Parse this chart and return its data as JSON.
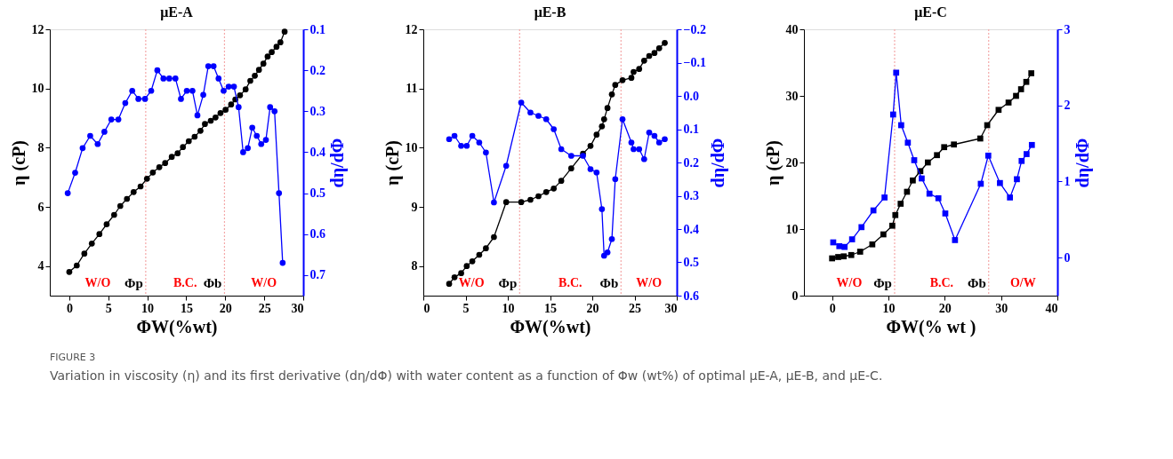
{
  "chart_data": [
    {
      "type": "line",
      "title": "μE-A",
      "xlabel": "ΦW(%wt)",
      "ylabel": "η (cP)",
      "y2label": "dη/dΦ",
      "marker": "circle",
      "xlim": [
        -2.5,
        30
      ],
      "xticks": [
        0,
        5,
        10,
        15,
        20,
        25,
        30
      ],
      "ylim": [
        3,
        12
      ],
      "yticks": [
        4,
        6,
        8,
        10,
        12
      ],
      "y2lim": [
        0.75,
        0.1
      ],
      "y2ticks": [
        0.1,
        0.2,
        0.3,
        0.4,
        0.5,
        0.6,
        0.7
      ],
      "series": [
        {
          "color": "#000000",
          "x": [
            0,
            0.96,
            1.93,
            2.89,
            3.86,
            4.79,
            5.75,
            6.54,
            7.39,
            8.25,
            9.14,
            9.96,
            10.71,
            11.54,
            12.29,
            13.14,
            13.89,
            14.57,
            15.32,
            16.07,
            16.82,
            17.39,
            18.14,
            18.75,
            19.39,
            20.04,
            20.75,
            21.29,
            21.89,
            22.61,
            23.21,
            23.79,
            24.32,
            24.89,
            25.43,
            25.96,
            26.57,
            27.07,
            27.61
          ],
          "values": [
            3.8,
            4.02,
            4.42,
            4.76,
            5.08,
            5.41,
            5.73,
            6.03,
            6.27,
            6.5,
            6.69,
            6.95,
            7.16,
            7.34,
            7.48,
            7.69,
            7.81,
            8.02,
            8.22,
            8.37,
            8.57,
            8.8,
            8.91,
            9.02,
            9.17,
            9.28,
            9.46,
            9.63,
            9.77,
            9.97,
            10.26,
            10.43,
            10.63,
            10.84,
            11.08,
            11.23,
            11.41,
            11.56,
            11.92
          ]
        },
        {
          "color": "#0000ff",
          "axis": "y2",
          "x": [
            -0.2,
            0.75,
            1.71,
            2.68,
            3.64,
            4.5,
            5.39,
            6.29,
            7.18,
            8.07,
            8.86,
            9.71,
            10.5,
            11.29,
            12.07,
            12.82,
            13.61,
            14.32,
            15.07,
            15.79,
            16.43,
            17.18,
            17.82,
            18.5,
            19.14,
            19.79,
            20.43,
            21.11,
            21.71,
            22.29,
            22.89,
            23.46,
            24.04,
            24.61,
            25.21,
            25.75,
            26.32,
            26.89,
            27.36
          ],
          "values": [
            0.5,
            0.45,
            0.39,
            0.36,
            0.38,
            0.35,
            0.32,
            0.32,
            0.28,
            0.25,
            0.27,
            0.27,
            0.25,
            0.2,
            0.22,
            0.22,
            0.22,
            0.27,
            0.25,
            0.25,
            0.31,
            0.26,
            0.19,
            0.19,
            0.22,
            0.25,
            0.24,
            0.24,
            0.29,
            0.4,
            0.39,
            0.34,
            0.36,
            0.38,
            0.37,
            0.29,
            0.3,
            0.5,
            0.67
          ]
        }
      ],
      "ref_lines": [
        {
          "axis": "x",
          "value": 9.8,
          "label": "Φp",
          "color": "#f4a8a8",
          "line_style": "dotted"
        },
        {
          "axis": "x",
          "value": 19.9,
          "label": "Φb",
          "color": "#f4a8a8",
          "line_style": "dotted"
        }
      ],
      "annotations": [
        "W/O",
        "B.C.",
        "W/O",
        "FIGURE 3",
        "Variation in viscosity (η) and its first derivative (dη/dΦ) with water content as a function of Φw (wt%) of optimal μE-A, μE-B, and μE-C."
      ]
    },
    {
      "type": "line",
      "title": "μE-B",
      "xlabel": "ΦW(%wt)",
      "ylabel": "η (cP)",
      "y2label": "dη/dΦ",
      "marker": "circle",
      "xlim": [
        0,
        30
      ],
      "xticks": [
        0,
        5,
        10,
        15,
        20,
        25,
        30
      ],
      "ylim": [
        7.5,
        12
      ],
      "yticks": [
        8,
        9,
        10,
        11,
        12
      ],
      "y2lim": [
        0.6,
        -0.2
      ],
      "y2ticks": [
        -0.2,
        -0.1,
        {
          "value": 0,
          "label": "0.0"
        },
        0.1,
        0.2,
        0.3,
        0.4,
        0.5,
        0.6
      ],
      "series": [
        {
          "color": "#000000",
          "x": [
            3.06,
            3.69,
            4.48,
            5.14,
            5.8,
            6.62,
            7.41,
            8.36,
            9.81,
            11.59,
            12.68,
            13.63,
            14.55,
            15.44,
            16.33,
            17.51,
            18.9,
            19.79,
            20.51,
            21.14,
            21.4,
            21.8,
            22.32,
            22.72,
            23.58,
            24.63,
            24.89,
            25.55,
            26.14,
            26.74,
            27.36,
            27.92,
            28.58
          ],
          "values": [
            7.7,
            7.81,
            7.88,
            8.0,
            8.08,
            8.19,
            8.3,
            8.49,
            9.08,
            9.08,
            9.12,
            9.18,
            9.25,
            9.31,
            9.44,
            9.65,
            9.9,
            10.03,
            10.22,
            10.36,
            10.48,
            10.67,
            10.9,
            11.06,
            11.14,
            11.18,
            11.28,
            11.33,
            11.47,
            11.55,
            11.6,
            11.68,
            11.77
          ]
        },
        {
          "color": "#0000ff",
          "axis": "y2",
          "x": [
            3.06,
            3.69,
            4.48,
            5.14,
            5.8,
            6.62,
            7.41,
            8.36,
            9.81,
            11.59,
            12.68,
            13.63,
            14.55,
            15.44,
            16.33,
            17.51,
            18.9,
            19.79,
            20.51,
            21.14,
            21.4,
            21.8,
            22.32,
            22.72,
            23.58,
            24.63,
            24.89,
            25.55,
            26.14,
            26.74,
            27.36,
            27.92,
            28.58
          ],
          "values": [
            0.13,
            0.12,
            0.15,
            0.15,
            0.12,
            0.14,
            0.17,
            0.32,
            0.21,
            0.02,
            0.05,
            0.06,
            0.07,
            0.1,
            0.16,
            0.18,
            0.18,
            0.22,
            0.23,
            0.34,
            0.48,
            0.47,
            0.43,
            0.25,
            0.07,
            0.14,
            0.16,
            0.16,
            0.19,
            0.11,
            0.12,
            0.14,
            0.13
          ]
        }
      ],
      "ref_lines": [
        {
          "axis": "x",
          "value": 11.4,
          "label": "Φp",
          "color": "#f4a8a8",
          "line_style": "dotted"
        },
        {
          "axis": "x",
          "value": 23.4,
          "label": "Φb",
          "color": "#f4a8a8",
          "line_style": "dotted"
        }
      ],
      "annotations": [
        "W/O",
        "B.C.",
        "W/O"
      ]
    },
    {
      "type": "line",
      "title": "μE-C",
      "xlabel": "ΦW(% wt )",
      "ylabel": "η (cP)",
      "y2label": "dη/dΦ",
      "marker": "square",
      "xlim": [
        -5,
        40
      ],
      "xticks": [
        0,
        10,
        20,
        30,
        40
      ],
      "ylim": [
        0,
        40
      ],
      "yticks": [
        0,
        10,
        20,
        30,
        40
      ],
      "y2lim": [
        -0.5,
        3
      ],
      "y2ticks": [
        0,
        1,
        2,
        3
      ],
      "series": [
        {
          "color": "#000000",
          "x": [
            0,
            1.08,
            2.07,
            3.4,
            4.98,
            7.14,
            9.11,
            10.69,
            11.23,
            12.17,
            13.3,
            14.33,
            15.67,
            17.0,
            18.62,
            19.9,
            21.63,
            26.31,
            27.54,
            29.56,
            31.33,
            32.66,
            33.55,
            34.48,
            35.37
          ],
          "values": [
            5.6,
            5.8,
            5.9,
            6.1,
            6.6,
            7.7,
            9.2,
            10.5,
            12.1,
            13.8,
            15.6,
            17.3,
            18.7,
            20.0,
            21.1,
            22.3,
            22.7,
            23.6,
            25.6,
            27.9,
            29.0,
            30.0,
            31.0,
            32.1,
            33.4
          ]
        },
        {
          "color": "#0000ff",
          "axis": "y2",
          "x": [
            0.2,
            1.28,
            2.22,
            3.55,
            5.22,
            7.34,
            9.31,
            10.84,
            11.38,
            12.27,
            13.45,
            14.58,
            15.91,
            17.29,
            18.87,
            20.1,
            21.82,
            26.4,
            27.73,
            29.8,
            31.58,
            32.81,
            33.65,
            34.53,
            35.47
          ],
          "values": [
            0.2,
            0.15,
            0.14,
            0.24,
            0.4,
            0.62,
            0.79,
            1.88,
            2.43,
            1.74,
            1.51,
            1.28,
            1.04,
            0.84,
            0.78,
            0.58,
            0.23,
            0.97,
            1.34,
            0.98,
            0.79,
            1.03,
            1.27,
            1.36,
            1.48
          ]
        }
      ],
      "ref_lines": [
        {
          "axis": "x",
          "value": 11.1,
          "label": "Φp",
          "color": "#f4a8a8",
          "line_style": "dotted"
        },
        {
          "axis": "x",
          "value": 27.8,
          "label": "Φb",
          "color": "#f4a8a8",
          "line_style": "dotted"
        }
      ],
      "annotations": [
        "W/O",
        "B.C.",
        "O/W"
      ]
    }
  ]
}
